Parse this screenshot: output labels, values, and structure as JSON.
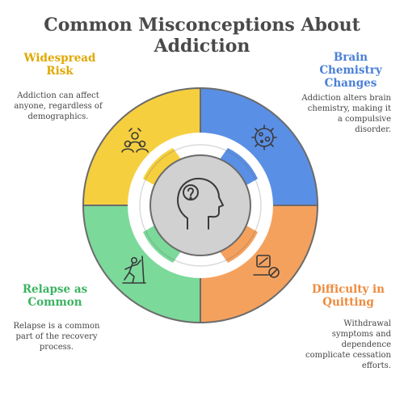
{
  "title": {
    "line1": "Common Misconceptions About",
    "line2": "Addiction"
  },
  "colors": {
    "widespread": "#f6cf3f",
    "brain": "#5a8fe6",
    "relapse": "#7bd99a",
    "quitting": "#f5a15e"
  },
  "center_icon": "head-question-icon",
  "sections": {
    "widespread": {
      "heading": [
        "Widespread",
        "Risk"
      ],
      "desc": [
        "Addiction can affect",
        "anyone, regardless of",
        "demographics."
      ],
      "icon": "group-people-icon"
    },
    "brain": {
      "heading": [
        "Brain",
        "Chemistry",
        "Changes"
      ],
      "desc": [
        "Addiction alters brain",
        "chemistry, making it",
        "a compulsive",
        "disorder."
      ],
      "icon": "virus-cell-icon"
    },
    "relapse": {
      "heading": [
        "Relapse as",
        "Common"
      ],
      "desc": [
        "Relapse is a common",
        "part of the recovery",
        "process."
      ],
      "icon": "climbing-person-icon"
    },
    "quitting": {
      "heading": [
        "Difficulty in",
        "Quitting"
      ],
      "desc": [
        "Withdrawal",
        "symptoms and",
        "dependence",
        "complicate cessation",
        "efforts."
      ],
      "icon": "no-smoking-icon"
    }
  }
}
